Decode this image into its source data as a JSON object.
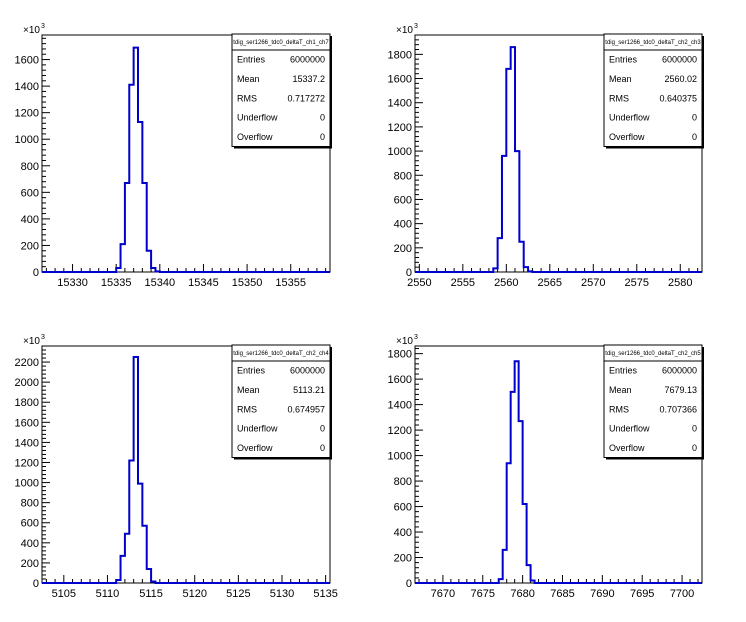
{
  "chart_data": [
    {
      "type": "histogram",
      "title": "tdig_ser1266_tdc0_deltaT_ch1_ch7",
      "y_exponent": "×10³",
      "exp_base": "×10",
      "exp_power": "3",
      "xlim": [
        15326.5,
        15359.5
      ],
      "ylim": [
        0,
        1785
      ],
      "x_ticks": [
        15330,
        15335,
        15340,
        15345,
        15350,
        15355
      ],
      "y_ticks": [
        0,
        200,
        400,
        600,
        800,
        1000,
        1200,
        1400,
        1600
      ],
      "bin_width": 0.5,
      "bins": [
        [
          15335.0,
          30
        ],
        [
          15335.5,
          210
        ],
        [
          15336.0,
          670
        ],
        [
          15336.5,
          1410
        ],
        [
          15337.0,
          1690
        ],
        [
          15337.5,
          1130
        ],
        [
          15338.0,
          670
        ],
        [
          15338.5,
          160
        ],
        [
          15339.0,
          30
        ],
        [
          15339.5,
          5
        ]
      ],
      "stats": [
        {
          "label": "Entries",
          "value": "6000000"
        },
        {
          "label": "Mean",
          "value": "15337.2"
        },
        {
          "label": "RMS",
          "value": "0.717272"
        },
        {
          "label": "Underflow",
          "value": "0"
        },
        {
          "label": "Overflow",
          "value": "0"
        }
      ]
    },
    {
      "type": "histogram",
      "title": "tdig_ser1266_tdc0_deltaT_ch2_ch3",
      "y_exponent": "×10³",
      "exp_base": "×10",
      "exp_power": "3",
      "xlim": [
        2549.5,
        2582.5
      ],
      "ylim": [
        0,
        1960
      ],
      "x_ticks": [
        2550,
        2555,
        2560,
        2565,
        2570,
        2575,
        2580
      ],
      "y_ticks": [
        0,
        200,
        400,
        600,
        800,
        1000,
        1200,
        1400,
        1600,
        1800
      ],
      "bin_width": 0.5,
      "bins": [
        [
          2558.5,
          30
        ],
        [
          2559.0,
          280
        ],
        [
          2559.5,
          960
        ],
        [
          2560.0,
          1680
        ],
        [
          2560.5,
          1860
        ],
        [
          2561.0,
          1000
        ],
        [
          2561.5,
          250
        ],
        [
          2562.0,
          40
        ],
        [
          2562.5,
          5
        ]
      ],
      "stats": [
        {
          "label": "Entries",
          "value": "6000000"
        },
        {
          "label": "Mean",
          "value": "2560.02"
        },
        {
          "label": "RMS",
          "value": "0.640375"
        },
        {
          "label": "Underflow",
          "value": "0"
        },
        {
          "label": "Overflow",
          "value": "0"
        }
      ]
    },
    {
      "type": "histogram",
      "title": "tdig_ser1266_tdc0_deltaT_ch2_ch4",
      "y_exponent": "×10³",
      "exp_base": "×10",
      "exp_power": "3",
      "xlim": [
        5102.5,
        5135.5
      ],
      "ylim": [
        0,
        2360
      ],
      "x_ticks": [
        5105,
        5110,
        5115,
        5120,
        5125,
        5130,
        5135
      ],
      "y_ticks": [
        0,
        200,
        400,
        600,
        800,
        1000,
        1200,
        1400,
        1600,
        1800,
        2000,
        2200
      ],
      "bin_width": 0.5,
      "bins": [
        [
          5111.0,
          30
        ],
        [
          5111.5,
          270
        ],
        [
          5112.0,
          490
        ],
        [
          5112.5,
          1220
        ],
        [
          5113.0,
          2250
        ],
        [
          5113.5,
          990
        ],
        [
          5114.0,
          570
        ],
        [
          5114.5,
          140
        ],
        [
          5115.0,
          15
        ]
      ],
      "stats": [
        {
          "label": "Entries",
          "value": "6000000"
        },
        {
          "label": "Mean",
          "value": "5113.21"
        },
        {
          "label": "RMS",
          "value": "0.674957"
        },
        {
          "label": "Underflow",
          "value": "0"
        },
        {
          "label": "Overflow",
          "value": "0"
        }
      ]
    },
    {
      "type": "histogram",
      "title": "tdig_ser1266_tdc0_deltaT_ch2_ch5",
      "y_exponent": "×10³",
      "exp_base": "×10",
      "exp_power": "3",
      "xlim": [
        7666.5,
        7702.5
      ],
      "ylim": [
        0,
        1860
      ],
      "x_ticks": [
        7670,
        7675,
        7680,
        7685,
        7690,
        7695,
        7700
      ],
      "y_ticks": [
        0,
        200,
        400,
        600,
        800,
        1000,
        1200,
        1400,
        1600,
        1800
      ],
      "bin_width": 0.5,
      "bins": [
        [
          7677.0,
          30
        ],
        [
          7677.5,
          260
        ],
        [
          7678.0,
          940
        ],
        [
          7678.5,
          1500
        ],
        [
          7679.0,
          1740
        ],
        [
          7679.5,
          1270
        ],
        [
          7680.0,
          620
        ],
        [
          7680.5,
          140
        ],
        [
          7681.0,
          20
        ]
      ],
      "stats": [
        {
          "label": "Entries",
          "value": "6000000"
        },
        {
          "label": "Mean",
          "value": "7679.13"
        },
        {
          "label": "RMS",
          "value": "0.707366"
        },
        {
          "label": "Underflow",
          "value": "0"
        },
        {
          "label": "Overflow",
          "value": "0"
        }
      ]
    }
  ]
}
